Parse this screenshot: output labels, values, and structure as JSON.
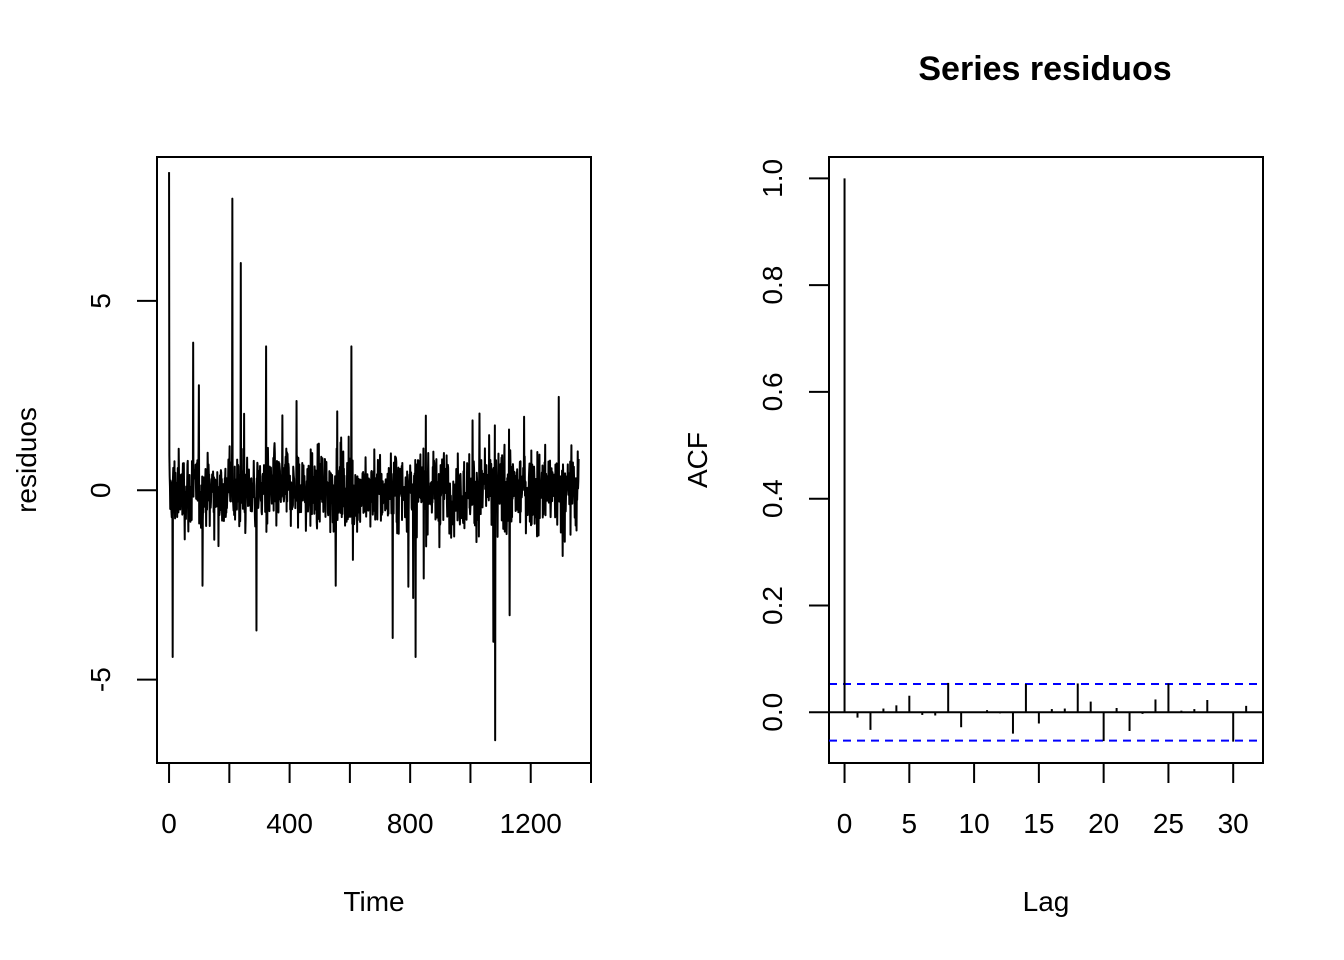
{
  "chart_data": [
    {
      "type": "line",
      "title": "",
      "xlabel": "Time",
      "ylabel": "residuos",
      "xlim": [
        -40,
        1400
      ],
      "ylim": [
        -7.2,
        8.8
      ],
      "xticks": [
        0,
        200,
        400,
        600,
        800,
        1000,
        1200,
        1400
      ],
      "xtick_labels": [
        "0",
        "",
        "400",
        "",
        "800",
        "",
        "1200",
        ""
      ],
      "yticks": [
        -5,
        0,
        5
      ],
      "ytick_labels": [
        "-5",
        "0",
        "5"
      ],
      "n": 1360,
      "grid": false,
      "notable_points": [
        {
          "x": 0,
          "y": 8.4
        },
        {
          "x": 12,
          "y": -4.4
        },
        {
          "x": 210,
          "y": 7.7
        },
        {
          "x": 238,
          "y": 6.0
        },
        {
          "x": 290,
          "y": -3.7
        },
        {
          "x": 742,
          "y": -3.9
        },
        {
          "x": 818,
          "y": -4.4
        },
        {
          "x": 1082,
          "y": -6.6
        },
        {
          "x": 1076,
          "y": -4.0
        },
        {
          "x": 80,
          "y": 3.9
        },
        {
          "x": 322,
          "y": 3.8
        },
        {
          "x": 605,
          "y": 3.8
        },
        {
          "x": 1130,
          "y": -3.3
        }
      ]
    },
    {
      "type": "bar",
      "title": "Series  residuos",
      "xlabel": "Lag",
      "ylabel": "ACF",
      "xlim": [
        -1.2,
        32.3
      ],
      "ylim": [
        -0.095,
        1.04
      ],
      "xticks": [
        0,
        5,
        10,
        15,
        20,
        25,
        30
      ],
      "xtick_labels": [
        "0",
        "5",
        "10",
        "15",
        "20",
        "25",
        "30"
      ],
      "yticks": [
        0.0,
        0.2,
        0.4,
        0.6,
        0.8,
        1.0
      ],
      "ytick_labels": [
        "0.0",
        "0.2",
        "0.4",
        "0.6",
        "0.8",
        "1.0"
      ],
      "lags": [
        0,
        1,
        2,
        3,
        4,
        5,
        6,
        7,
        8,
        9,
        10,
        11,
        12,
        13,
        14,
        15,
        16,
        17,
        18,
        19,
        20,
        21,
        22,
        23,
        24,
        25,
        26,
        27,
        28,
        29,
        30,
        31
      ],
      "acf": [
        1.0,
        -0.01,
        -0.033,
        0.007,
        0.013,
        0.031,
        -0.005,
        -0.006,
        0.055,
        -0.028,
        0.001,
        0.004,
        -0.002,
        -0.04,
        0.053,
        -0.021,
        0.006,
        0.007,
        0.054,
        0.02,
        -0.054,
        0.008,
        -0.035,
        -0.003,
        0.024,
        0.054,
        0.003,
        0.006,
        0.023,
        -0.001,
        -0.055,
        0.012
      ],
      "confidence_limit": 0.053,
      "confidence_color": "#0000ff",
      "grid": false
    }
  ]
}
